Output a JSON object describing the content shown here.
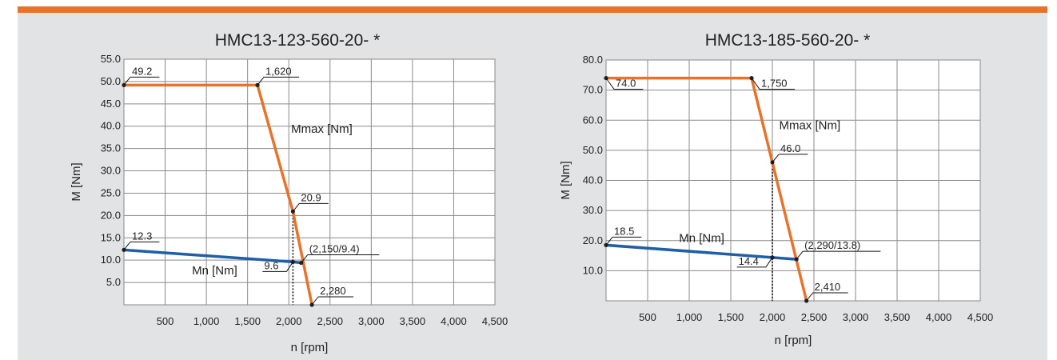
{
  "colors": {
    "accent": "#e8722a",
    "panel": "#e2e3e4",
    "mmax": "#e8722a",
    "mn": "#1f5fa8",
    "grid": "#8a8a8a",
    "plot_bg": "#ffffff"
  },
  "chart_data": [
    {
      "type": "line",
      "title": "HMC13-123-560-20- *",
      "xlabel": "n [rpm]",
      "ylabel": "M [Nm]",
      "xlim": [
        0,
        4500
      ],
      "ylim": [
        0,
        55
      ],
      "xticks": [
        500,
        1000,
        1500,
        2000,
        2500,
        3000,
        3500,
        4000,
        4500
      ],
      "xtick_labels": [
        "500",
        "1,000",
        "1,500",
        "2,000",
        "2,500",
        "3,000",
        "3,500",
        "4,000",
        "4,500"
      ],
      "yticks": [
        5,
        10,
        15,
        20,
        25,
        30,
        35,
        40,
        45,
        50,
        55
      ],
      "ytick_labels": [
        "5.0",
        "10.0",
        "15.0",
        "20.0",
        "25.0",
        "30.0",
        "35.0",
        "40.0",
        "45.0",
        "50.0",
        "55.0"
      ],
      "grid": true,
      "series": [
        {
          "name": "Mmax [Nm]",
          "color": "#e8722a",
          "points": [
            [
              0,
              49.2
            ],
            [
              1620,
              49.2
            ],
            [
              2050,
              20.9
            ],
            [
              2280,
              0
            ]
          ]
        },
        {
          "name": "Mn [Nm]",
          "color": "#1f5fa8",
          "points": [
            [
              0,
              12.3
            ],
            [
              2050,
              9.6
            ],
            [
              2150,
              9.4
            ]
          ]
        }
      ],
      "annotations": [
        {
          "text": "49.2",
          "x": 0,
          "y": 49.2,
          "pos": "ne"
        },
        {
          "text": "1,620",
          "x": 1620,
          "y": 49.2,
          "pos": "ne"
        },
        {
          "text": "20.9",
          "x": 2050,
          "y": 20.9,
          "pos": "ne"
        },
        {
          "text": "12.3",
          "x": 0,
          "y": 12.3,
          "pos": "ne"
        },
        {
          "text": "(2,150/9.4)",
          "x": 2150,
          "y": 9.4,
          "pos": "ne"
        },
        {
          "text": "9.6",
          "x": 2050,
          "y": 9.6,
          "pos": "sw"
        },
        {
          "text": "2,280",
          "x": 2280,
          "y": 0,
          "pos": "ne"
        }
      ],
      "series_labels": [
        {
          "text": "Mmax [Nm]",
          "x": 2400,
          "y": 38.5
        },
        {
          "text": "Mn [Nm]",
          "x": 1100,
          "y": 6.8
        }
      ],
      "dotted_x": 2050
    },
    {
      "type": "line",
      "title": "HMC13-185-560-20- *",
      "xlabel": "n [rpm]",
      "ylabel": "M [Nm]",
      "xlim": [
        0,
        4500
      ],
      "ylim": [
        0,
        80
      ],
      "xticks": [
        500,
        1000,
        1500,
        2000,
        2500,
        3000,
        3500,
        4000,
        4500
      ],
      "xtick_labels": [
        "500",
        "1,000",
        "1,500",
        "2,000",
        "2,500",
        "3,000",
        "3,500",
        "4,000",
        "4,500"
      ],
      "yticks": [
        10,
        20,
        30,
        40,
        50,
        60,
        70,
        80
      ],
      "ytick_labels": [
        "10.0",
        "20.0",
        "30.0",
        "40.0",
        "50.0",
        "60.0",
        "70.0",
        "80.0"
      ],
      "grid": true,
      "series": [
        {
          "name": "Mmax [Nm]",
          "color": "#e8722a",
          "points": [
            [
              0,
              74.0
            ],
            [
              1750,
              74.0
            ],
            [
              2000,
              46.0
            ],
            [
              2410,
              0
            ]
          ]
        },
        {
          "name": "Mn [Nm]",
          "color": "#1f5fa8",
          "points": [
            [
              0,
              18.5
            ],
            [
              2000,
              14.4
            ],
            [
              2290,
              13.8
            ]
          ]
        }
      ],
      "annotations": [
        {
          "text": "74.0",
          "x": 0,
          "y": 74.0,
          "pos": "se"
        },
        {
          "text": "1,750",
          "x": 1750,
          "y": 74.0,
          "pos": "se"
        },
        {
          "text": "46.0",
          "x": 2000,
          "y": 46.0,
          "pos": "ne"
        },
        {
          "text": "18.5",
          "x": 0,
          "y": 18.5,
          "pos": "ne"
        },
        {
          "text": "(2,290/13.8)",
          "x": 2290,
          "y": 13.8,
          "pos": "ne"
        },
        {
          "text": "14.4",
          "x": 2000,
          "y": 14.4,
          "pos": "sw"
        },
        {
          "text": "2,410",
          "x": 2410,
          "y": 0,
          "pos": "ne"
        }
      ],
      "series_labels": [
        {
          "text": "Mmax [Nm]",
          "x": 2450,
          "y": 57
        },
        {
          "text": "Mn [Nm]",
          "x": 1150,
          "y": 19.5
        }
      ],
      "dotted_x": 2000
    }
  ]
}
